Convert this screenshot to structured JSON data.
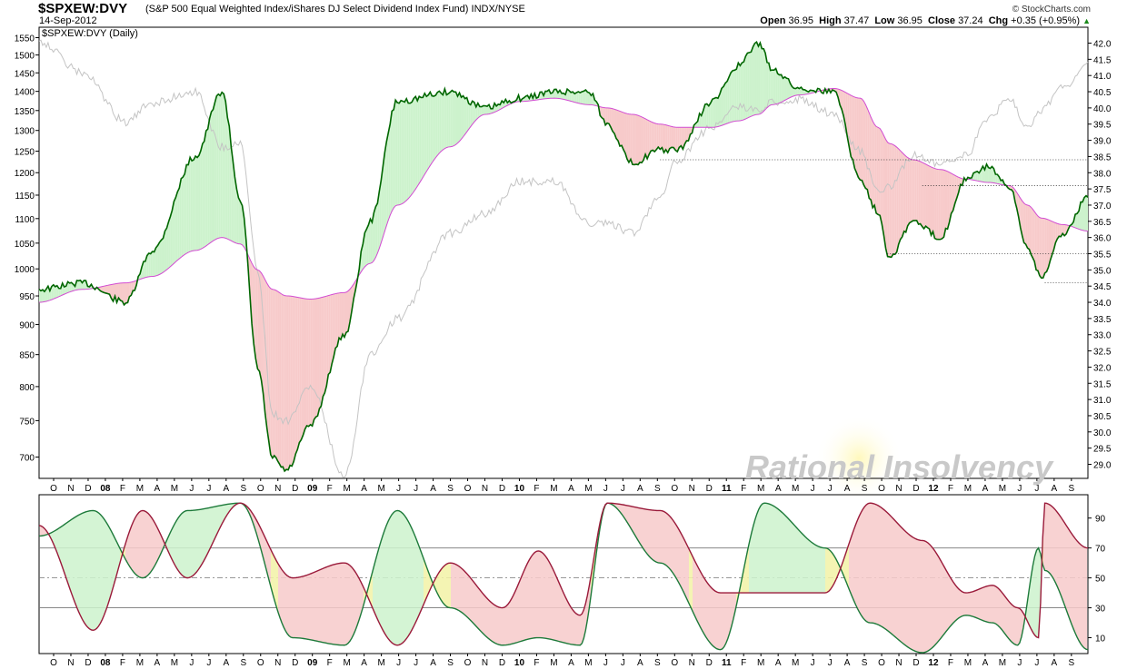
{
  "header": {
    "symbol": "$SPXEW:DVY",
    "description": "(S&P 500 Equal Weighted Index/iShares DJ Select Dividend Index Fund)  INDX/NYSE",
    "date": "14-Sep-2012",
    "brand": "© StockCharts.com",
    "ohlc": {
      "open_label": "Open",
      "open": "36.95",
      "high_label": "High",
      "high": "37.47",
      "low_label": "Low",
      "low": "36.95",
      "close_label": "Close",
      "close": "37.24",
      "chg_label": "Chg",
      "chg": "+0.35 (+0.95%)"
    },
    "panel_label": "$SPXEW:DVY (Daily)",
    "watermark": "Rational Insolvency"
  },
  "colors": {
    "price_line": "#006600",
    "moving_average": "#d24cd2",
    "overlay_line": "#c4c4c4",
    "fill_above": "#ccf2cc",
    "fill_below": "#f7caca",
    "osc_green": "#1d7a3a",
    "osc_red": "#9a1a3a",
    "osc_yellow": "#f2f2a6"
  },
  "chart_data": [
    {
      "type": "line",
      "title": "$SPXEW:DVY (Daily)",
      "x": [
        "2007-09-17",
        "2007-12-01",
        "2008-02-15",
        "2008-04-01",
        "2008-06-15",
        "2008-07-31",
        "2008-09-01",
        "2008-10-01",
        "2008-10-27",
        "2008-11-20",
        "2009-01-01",
        "2009-03-01",
        "2009-04-15",
        "2009-06-01",
        "2009-09-01",
        "2009-11-01",
        "2010-01-01",
        "2010-03-01",
        "2010-05-01",
        "2010-06-01",
        "2010-07-15",
        "2010-09-01",
        "2010-10-01",
        "2010-12-01",
        "2011-01-15",
        "2011-02-19",
        "2011-03-15",
        "2011-05-01",
        "2011-07-01",
        "2011-08-15",
        "2011-09-15",
        "2011-10-05",
        "2011-11-15",
        "2012-01-01",
        "2012-02-15",
        "2012-03-25",
        "2012-05-01",
        "2012-06-01",
        "2012-06-25",
        "2012-08-01",
        "2012-09-14"
      ],
      "series": [
        {
          "name": "$SPXEW:DVY",
          "values": [
            34.4,
            34.6,
            34.0,
            35.6,
            38.5,
            40.5,
            37.2,
            32.0,
            29.2,
            28.8,
            30.2,
            33.0,
            36.5,
            40.2,
            40.5,
            40.0,
            40.3,
            40.5,
            40.5,
            39.5,
            38.3,
            38.7,
            38.7,
            40.2,
            41.3,
            42.0,
            41.2,
            40.6,
            40.5,
            37.8,
            36.8,
            35.4,
            36.5,
            36.0,
            37.8,
            38.2,
            37.5,
            35.7,
            34.8,
            36.1,
            37.24
          ]
        },
        {
          "name": "MA",
          "values": [
            34.0,
            34.4,
            34.6,
            34.8,
            35.6,
            36.0,
            35.8,
            35.0,
            34.4,
            34.2,
            34.1,
            34.3,
            35.2,
            37.0,
            38.8,
            39.8,
            40.2,
            40.3,
            40.1,
            40.0,
            39.8,
            39.5,
            39.4,
            39.4,
            39.6,
            39.8,
            40.1,
            40.4,
            40.6,
            40.3,
            39.4,
            38.9,
            38.4,
            38.1,
            37.8,
            37.7,
            37.6,
            37.0,
            36.6,
            36.4,
            36.2
          ]
        },
        {
          "name": "S&P 500 Equal Weighted Index",
          "values": [
            1540,
            1450,
            1320,
            1370,
            1400,
            1260,
            1270,
            1000,
            760,
            750,
            800,
            675,
            850,
            910,
            1070,
            1110,
            1180,
            1180,
            1090,
            1090,
            1070,
            1150,
            1230,
            1310,
            1360,
            1350,
            1370,
            1380,
            1340,
            1250,
            1160,
            1170,
            1240,
            1220,
            1240,
            1330,
            1380,
            1310,
            1350,
            1410,
            1480
          ]
        }
      ],
      "xlabel": "",
      "ylabel": "",
      "ylim": [
        28.8,
        42.3
      ],
      "y_ticks_right": [
        "42.0",
        "41.5",
        "41.0",
        "40.5",
        "40.0",
        "39.5",
        "39.0",
        "38.5",
        "38.0",
        "37.5",
        "37.0",
        "36.5",
        "36.0",
        "35.5",
        "35.0",
        "34.5",
        "34.0",
        "33.5",
        "33.0",
        "32.5",
        "32.0",
        "31.5",
        "31.0",
        "30.5",
        "30.0",
        "29.5",
        "29.0"
      ],
      "y_ticks_left": [
        "1550",
        "1500",
        "1450",
        "1400",
        "1350",
        "1300",
        "1250",
        "1200",
        "1150",
        "1100",
        "1050",
        "1000",
        "950",
        "900",
        "850",
        "800",
        "750",
        "700"
      ],
      "y_ticks_left_axis": "log",
      "x_ticks": [
        "O",
        "N",
        "D",
        "08",
        "F",
        "M",
        "A",
        "M",
        "J",
        "J",
        "A",
        "S",
        "O",
        "N",
        "D",
        "09",
        "F",
        "M",
        "A",
        "M",
        "J",
        "J",
        "A",
        "S",
        "O",
        "N",
        "D",
        "10",
        "F",
        "M",
        "A",
        "M",
        "J",
        "J",
        "A",
        "S",
        "O",
        "N",
        "D",
        "11",
        "F",
        "M",
        "A",
        "M",
        "J",
        "J",
        "A",
        "S",
        "O",
        "N",
        "D",
        "12",
        "F",
        "M",
        "A",
        "M",
        "J",
        "J",
        "A",
        "S"
      ],
      "horizontal_reference_levels": [
        38.4,
        37.6,
        35.5,
        34.6
      ],
      "grid": false
    },
    {
      "type": "line",
      "title": "",
      "x": [
        "2007-09-17",
        "2007-12-20",
        "2008-03-15",
        "2008-06-01",
        "2008-09-01",
        "2008-12-01",
        "2009-03-01",
        "2009-06-01",
        "2009-09-01",
        "2009-12-01",
        "2010-02-01",
        "2010-04-15",
        "2010-06-01",
        "2010-09-01",
        "2010-12-15",
        "2011-03-01",
        "2011-06-15",
        "2011-09-01",
        "2011-12-01",
        "2012-02-15",
        "2012-04-01",
        "2012-05-15",
        "2012-06-20",
        "2012-07-01",
        "2012-09-14"
      ],
      "series": [
        {
          "name": "green",
          "values": [
            78,
            95,
            50,
            95,
            100,
            10,
            5,
            95,
            30,
            5,
            10,
            5,
            100,
            60,
            2,
            100,
            70,
            20,
            0,
            25,
            20,
            5,
            70,
            55,
            2
          ]
        },
        {
          "name": "red",
          "values": [
            85,
            15,
            95,
            50,
            100,
            50,
            60,
            5,
            60,
            30,
            68,
            25,
            100,
            95,
            40,
            40,
            40,
            100,
            75,
            40,
            45,
            30,
            10,
            100,
            70
          ]
        }
      ],
      "ylim": [
        0,
        105
      ],
      "y_ticks": [
        "90",
        "70",
        "50",
        "30",
        "10"
      ],
      "reference_lines": [
        70,
        50,
        30
      ],
      "x_ticks": [
        "O",
        "N",
        "D",
        "08",
        "F",
        "M",
        "A",
        "M",
        "J",
        "J",
        "A",
        "S",
        "O",
        "N",
        "D",
        "09",
        "F",
        "M",
        "A",
        "M",
        "J",
        "J",
        "A",
        "S",
        "O",
        "N",
        "D",
        "10",
        "F",
        "M",
        "A",
        "M",
        "J",
        "J",
        "A",
        "S",
        "O",
        "N",
        "D",
        "11",
        "F",
        "M",
        "A",
        "M",
        "J",
        "J",
        "A",
        "S",
        "O",
        "N",
        "D",
        "12",
        "F",
        "M",
        "A",
        "M",
        "J",
        "J",
        "A",
        "S"
      ]
    }
  ]
}
